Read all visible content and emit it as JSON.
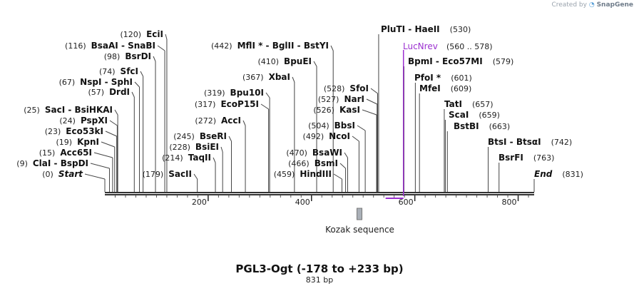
{
  "credit": {
    "prefix": "Created by",
    "brand": "SnapGene"
  },
  "title": "PGL3-Ogt (-178 to +233 bp)",
  "length_label": "831 bp",
  "colors": {
    "line": "#333333",
    "feature_purple": "#9b30d0",
    "kozak_fill": "#aab0b8"
  },
  "sequence": {
    "start": 0,
    "end": 831
  },
  "axis": {
    "ticks": [
      200,
      400,
      600,
      800
    ],
    "minor_step": 20
  },
  "features": [
    {
      "name": "LucNrev",
      "range": "(560 .. 578)",
      "start": 560,
      "end": 578,
      "color": "#9b30d0"
    },
    {
      "name": "Kozak sequence",
      "start": 488,
      "end": 498,
      "color": "#aab0b8"
    }
  ],
  "sites": [
    {
      "pos": "(0)",
      "names": [
        "Start"
      ],
      "bp": 0,
      "italic": true
    },
    {
      "pos": "(9)",
      "names": [
        "ClaI",
        "BspDI"
      ],
      "bp": 9
    },
    {
      "pos": "(15)",
      "names": [
        "Acc65I"
      ],
      "bp": 15
    },
    {
      "pos": "(19)",
      "names": [
        "KpnI"
      ],
      "bp": 19
    },
    {
      "pos": "(23)",
      "names": [
        "Eco53kI"
      ],
      "bp": 23
    },
    {
      "pos": "(24)",
      "names": [
        "PspXI"
      ],
      "bp": 24
    },
    {
      "pos": "(25)",
      "names": [
        "SacI",
        "BsiHKAI"
      ],
      "bp": 25
    },
    {
      "pos": "(57)",
      "names": [
        "DrdI"
      ],
      "bp": 57
    },
    {
      "pos": "(67)",
      "names": [
        "NspI",
        "SphI"
      ],
      "bp": 67
    },
    {
      "pos": "(74)",
      "names": [
        "SfcI"
      ],
      "bp": 74
    },
    {
      "pos": "(98)",
      "names": [
        "BsrDI"
      ],
      "bp": 98
    },
    {
      "pos": "(116)",
      "names": [
        "BsaAI",
        "SnaBI"
      ],
      "bp": 116
    },
    {
      "pos": "(120)",
      "names": [
        "EciI"
      ],
      "bp": 120
    },
    {
      "pos": "(179)",
      "names": [
        "SacII"
      ],
      "bp": 179
    },
    {
      "pos": "(214)",
      "names": [
        "TaqII"
      ],
      "bp": 214
    },
    {
      "pos": "(228)",
      "names": [
        "BsiEI"
      ],
      "bp": 228
    },
    {
      "pos": "(245)",
      "names": [
        "BseRI"
      ],
      "bp": 245
    },
    {
      "pos": "(272)",
      "names": [
        "AccI"
      ],
      "bp": 272
    },
    {
      "pos": "(317)",
      "names": [
        "EcoP15I"
      ],
      "bp": 317
    },
    {
      "pos": "(319)",
      "names": [
        "Bpu10I"
      ],
      "bp": 319
    },
    {
      "pos": "(367)",
      "names": [
        "XbaI"
      ],
      "bp": 367
    },
    {
      "pos": "(410)",
      "names": [
        "BpuEI"
      ],
      "bp": 410
    },
    {
      "pos": "(442)",
      "names": [
        "MflI *",
        "BglII",
        "BstYI"
      ],
      "bp": 442
    },
    {
      "pos": "(459)",
      "names": [
        "HindIII"
      ],
      "bp": 459
    },
    {
      "pos": "(466)",
      "names": [
        "BsmI"
      ],
      "bp": 466
    },
    {
      "pos": "(470)",
      "names": [
        "BsaWI"
      ],
      "bp": 470
    },
    {
      "pos": "(492)",
      "names": [
        "NcoI"
      ],
      "bp": 492
    },
    {
      "pos": "(504)",
      "names": [
        "BbsI"
      ],
      "bp": 504
    },
    {
      "pos": "(526)",
      "names": [
        "KasI"
      ],
      "bp": 526
    },
    {
      "pos": "(527)",
      "names": [
        "NarI"
      ],
      "bp": 527
    },
    {
      "pos": "(528)",
      "names": [
        "SfoI"
      ],
      "bp": 528
    },
    {
      "pos": "(530)",
      "names": [
        "PluTI",
        "HaeII"
      ],
      "bp": 530,
      "pos_after": true
    },
    {
      "pos": "(579)",
      "names": [
        "BpmI",
        "Eco57MI"
      ],
      "bp": 579,
      "pos_after": true
    },
    {
      "pos": "(601)",
      "names": [
        "PfoI *"
      ],
      "bp": 601,
      "pos_after": true
    },
    {
      "pos": "(609)",
      "names": [
        "MfeI"
      ],
      "bp": 609,
      "pos_after": true
    },
    {
      "pos": "(657)",
      "names": [
        "TatI"
      ],
      "bp": 657,
      "pos_after": true
    },
    {
      "pos": "(659)",
      "names": [
        "ScaI"
      ],
      "bp": 659,
      "pos_after": true
    },
    {
      "pos": "(663)",
      "names": [
        "BstBI"
      ],
      "bp": 663,
      "pos_after": true
    },
    {
      "pos": "(742)",
      "names": [
        "BtsI",
        "BtsαI"
      ],
      "bp": 742,
      "pos_after": true
    },
    {
      "pos": "(763)",
      "names": [
        "BsrFI"
      ],
      "bp": 763,
      "pos_after": true
    },
    {
      "pos": "(831)",
      "names": [
        "End"
      ],
      "bp": 831,
      "pos_after": true,
      "italic": true
    }
  ]
}
